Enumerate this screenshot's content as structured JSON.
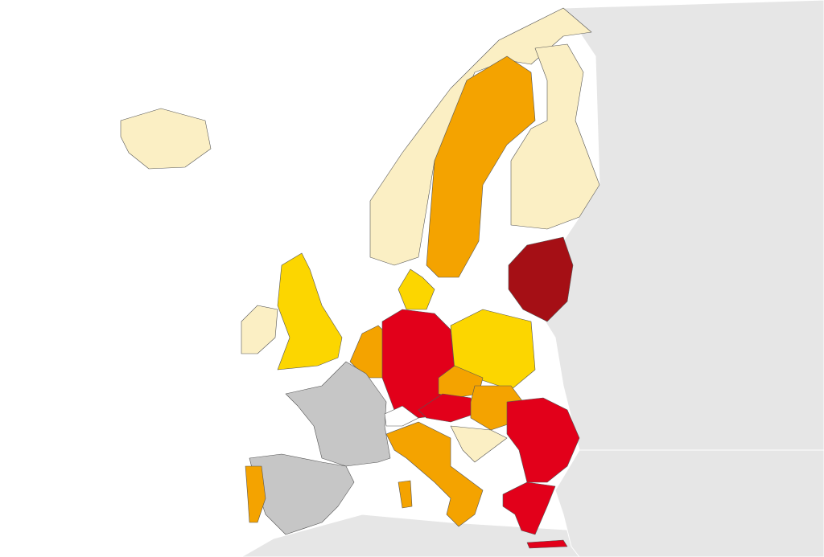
{
  "regions": [
    {
      "color": "#e6e6e6"
    },
    {
      "color": "#e6e6e6"
    },
    {
      "color": "#e6e6e6"
    },
    {
      "color": "#fbefc4"
    },
    {
      "color": "#fbefc4"
    },
    {
      "color": "#f4a300"
    },
    {
      "color": "#fbefc4"
    },
    {
      "color": "#a50f15"
    },
    {
      "color": "#fcd600"
    },
    {
      "color": "#fbefc4"
    },
    {
      "color": "#fcd600"
    },
    {
      "color": "#f4a300"
    },
    {
      "color": "#e2001a"
    },
    {
      "color": "#fcd600"
    },
    {
      "color": "#f4a300"
    },
    {
      "color": "#e2001a"
    },
    {
      "color": "#f4a300"
    },
    {
      "color": "#c6c6c6"
    },
    {
      "color": "#c6c6c6"
    },
    {
      "color": "#f4a300"
    },
    {
      "color": "#f4a300"
    },
    {
      "color": "#f4a300"
    },
    {
      "color": "#e2001a"
    },
    {
      "color": "#e2001a"
    },
    {
      "color": "#e2001a"
    },
    {
      "color": "#fbefc4"
    },
    {
      "color": "#ffffff"
    }
  ]
}
